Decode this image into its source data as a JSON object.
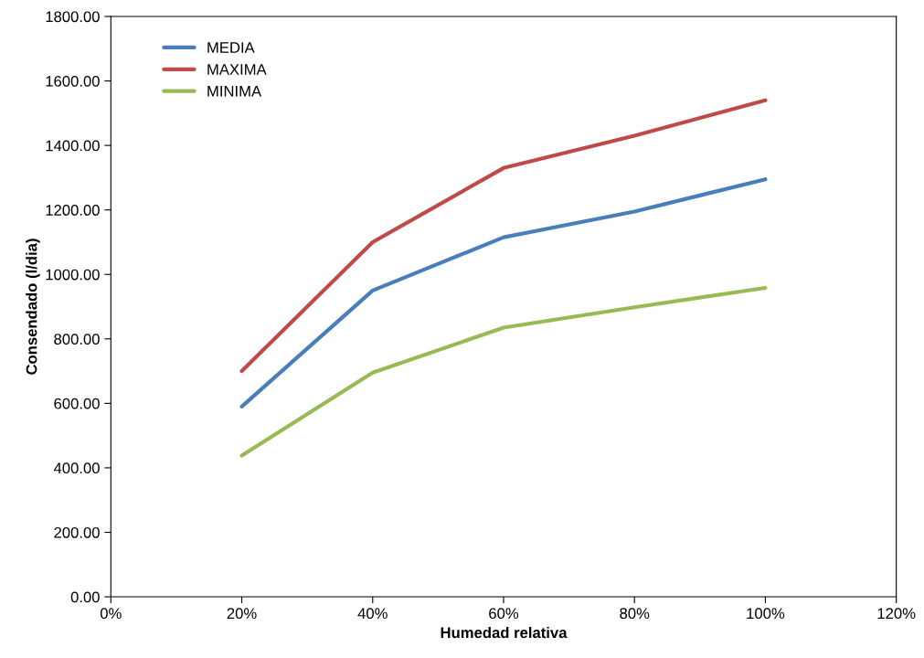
{
  "chart_data": {
    "type": "line",
    "xlabel": "Humedad relativa",
    "ylabel": "Consendado (l/dia)",
    "x": [
      20,
      40,
      60,
      80,
      100
    ],
    "series": [
      {
        "name": "MEDIA",
        "color": "#4a7ebb",
        "values": [
          590,
          950,
          1115,
          1195,
          1295
        ]
      },
      {
        "name": "MAXIMA",
        "color": "#be4b48",
        "values": [
          700,
          1100,
          1330,
          1430,
          1540
        ]
      },
      {
        "name": "MINIMA",
        "color": "#98b954",
        "values": [
          438,
          695,
          835,
          898,
          958
        ]
      }
    ],
    "xlim": [
      0,
      120
    ],
    "xticks": [
      {
        "value": 0,
        "label": "0%"
      },
      {
        "value": 20,
        "label": "20%"
      },
      {
        "value": 40,
        "label": "40%"
      },
      {
        "value": 60,
        "label": "60%"
      },
      {
        "value": 80,
        "label": "80%"
      },
      {
        "value": 100,
        "label": "100%"
      },
      {
        "value": 120,
        "label": "120%"
      }
    ],
    "ylim": [
      0,
      1800
    ],
    "yticks": [
      {
        "value": 0,
        "label": "0.00"
      },
      {
        "value": 200,
        "label": "200.00"
      },
      {
        "value": 400,
        "label": "400.00"
      },
      {
        "value": 600,
        "label": "600.00"
      },
      {
        "value": 800,
        "label": "800.00"
      },
      {
        "value": 1000,
        "label": "1000.00"
      },
      {
        "value": 1200,
        "label": "1200.00"
      },
      {
        "value": 1400,
        "label": "1400.00"
      },
      {
        "value": 1600,
        "label": "1600.00"
      },
      {
        "value": 1800,
        "label": "1800.00"
      }
    ],
    "grid": false,
    "legend": "top left",
    "marker": "none",
    "line_style": "solid"
  }
}
